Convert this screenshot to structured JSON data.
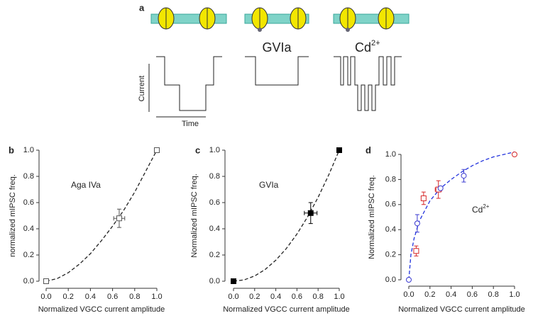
{
  "panel_a": {
    "label": "a",
    "blocker": "GVIa",
    "ion": "Cd",
    "ion_charge": "2+",
    "y_label": "Current",
    "x_label": "Time"
  },
  "chart_data": [
    {
      "type": "scatter",
      "label": "b",
      "annotation": "Aga IVa",
      "xlabel": "Normalized VGCC current amplitude",
      "ylabel": "normalized mIPSC freq.",
      "xlim": [
        0,
        1
      ],
      "ylim": [
        0,
        1
      ],
      "xticks": [
        {
          "value": 0,
          "label": "0.0"
        },
        0.2,
        0.4,
        0.6,
        0.8,
        {
          "value": 1,
          "label": "1.0"
        }
      ],
      "yticks": [
        {
          "value": 0,
          "label": "0.0"
        },
        0.2,
        0.4,
        0.6,
        0.8,
        {
          "value": 1,
          "label": "1.0"
        }
      ],
      "series": [
        {
          "color": "#555555",
          "marker": "square",
          "filled": false,
          "x": [
            0,
            0.66,
            1
          ],
          "values": [
            0,
            0.48,
            1
          ],
          "xerr": [
            0,
            0.05,
            0
          ],
          "yerr": [
            0,
            0.07,
            0
          ]
        }
      ],
      "fit": {
        "color": "#222222",
        "x": [
          0,
          0.1,
          0.2,
          0.3,
          0.4,
          0.5,
          0.6,
          0.7,
          0.8,
          0.9,
          1
        ],
        "values": [
          0,
          0.02,
          0.065,
          0.13,
          0.21,
          0.31,
          0.42,
          0.54,
          0.68,
          0.84,
          1
        ]
      }
    },
    {
      "type": "scatter",
      "label": "c",
      "annotation": "GVIa",
      "xlabel": "Normalized VGCC current amplitude",
      "ylabel": "Normalized mIPSC freq.",
      "xlim": [
        0,
        1
      ],
      "ylim": [
        0,
        1
      ],
      "xticks": [
        {
          "value": 0,
          "label": "0.0"
        },
        0.2,
        0.4,
        0.6,
        0.8,
        {
          "value": 1,
          "label": "1.0"
        }
      ],
      "yticks": [
        {
          "value": 0,
          "label": "0.0"
        },
        0.2,
        0.4,
        0.6,
        0.8,
        {
          "value": 1,
          "label": "1.0"
        }
      ],
      "series": [
        {
          "color": "#000000",
          "marker": "square",
          "filled": true,
          "x": [
            0,
            0.73,
            1
          ],
          "values": [
            0,
            0.52,
            1
          ],
          "xerr": [
            0,
            0.06,
            0
          ],
          "yerr": [
            0,
            0.08,
            0
          ]
        }
      ],
      "fit": {
        "color": "#222222",
        "x": [
          0,
          0.1,
          0.2,
          0.3,
          0.4,
          0.5,
          0.6,
          0.7,
          0.8,
          0.9,
          1
        ],
        "values": [
          0,
          0.01,
          0.04,
          0.09,
          0.16,
          0.25,
          0.36,
          0.49,
          0.64,
          0.81,
          1
        ]
      }
    },
    {
      "type": "scatter",
      "label": "d",
      "annotation": "Cd",
      "annotation_sup": "2+",
      "xlabel": "Normalized VGCC current amplitude",
      "ylabel": "Normalized mIPSC freq.",
      "xlim": [
        0,
        1
      ],
      "ylim": [
        0,
        1
      ],
      "xticks": [
        {
          "value": 0,
          "label": "0.0"
        },
        0.2,
        0.4,
        0.6,
        0.8,
        {
          "value": 1,
          "label": "1.0"
        }
      ],
      "yticks": [
        {
          "value": 0,
          "label": "0.0"
        },
        0.2,
        0.4,
        0.6,
        0.8,
        {
          "value": 1,
          "label": "1.0"
        }
      ],
      "series": [
        {
          "color": "#d62728",
          "marker": "square",
          "filled": false,
          "x": [
            0.07,
            0.14,
            0.28
          ],
          "values": [
            0.23,
            0.65,
            0.72
          ],
          "xerr": [
            0.02,
            0.02,
            0.03
          ],
          "yerr": [
            0.04,
            0.05,
            0.07
          ]
        },
        {
          "color": "#3a3ad0",
          "marker": "circle",
          "filled": false,
          "x": [
            0,
            0.08,
            0.3,
            0.52
          ],
          "values": [
            0,
            0.45,
            0.73,
            0.83
          ],
          "xerr": [
            0,
            0,
            0,
            0
          ],
          "yerr": [
            0,
            0.07,
            0,
            0.05
          ]
        },
        {
          "color": "#d62728",
          "marker": "circle",
          "filled": false,
          "x": [
            1
          ],
          "values": [
            1
          ],
          "xerr": [
            0
          ],
          "yerr": [
            0
          ]
        }
      ],
      "fit": {
        "color": "#2233dd",
        "x": [
          0,
          0.02,
          0.05,
          0.1,
          0.2,
          0.3,
          0.4,
          0.5,
          0.6,
          0.7,
          0.8,
          0.9,
          1
        ],
        "values": [
          0,
          0.2,
          0.33,
          0.47,
          0.63,
          0.73,
          0.8,
          0.86,
          0.91,
          0.95,
          0.98,
          1.0,
          1.02
        ]
      }
    }
  ]
}
